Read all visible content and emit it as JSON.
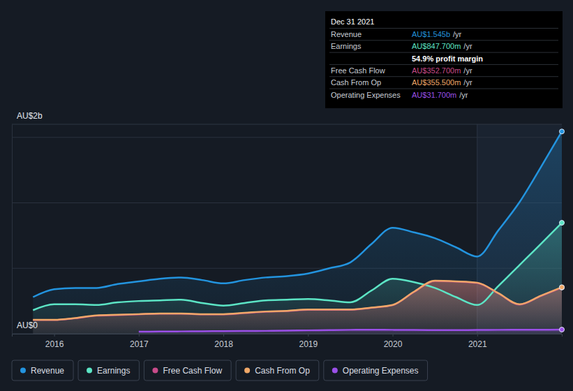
{
  "chart_data": {
    "type": "line",
    "x": [
      2015.75,
      2016,
      2016.25,
      2016.5,
      2016.75,
      2017,
      2017.25,
      2017.5,
      2017.75,
      2018,
      2018.25,
      2018.5,
      2018.75,
      2019,
      2019.25,
      2019.5,
      2019.75,
      2020,
      2020.25,
      2020.5,
      2020.75,
      2021,
      2021.25,
      2021.5,
      2021.75,
      2022
    ],
    "xlim": [
      2015.5,
      2022
    ],
    "xticks": [
      2016,
      2017,
      2018,
      2019,
      2020,
      2021
    ],
    "ylim": [
      0,
      1.6
    ],
    "yticks": [
      0,
      0.5,
      1,
      1.5
    ],
    "grid": true,
    "tick_labels": "x",
    "legend": "bottom",
    "annotations": [
      "AU$2b",
      "AU$0"
    ],
    "series": [
      {
        "name": "Revenue",
        "color": "#2394df",
        "values": [
          0.28,
          0.34,
          0.35,
          0.35,
          0.38,
          0.4,
          0.42,
          0.43,
          0.41,
          0.385,
          0.41,
          0.43,
          0.44,
          0.46,
          0.5,
          0.545,
          0.685,
          0.81,
          0.775,
          0.73,
          0.66,
          0.59,
          0.79,
          1.005,
          1.27,
          1.545
        ]
      },
      {
        "name": "Earnings",
        "color": "#5ce5c5",
        "values": [
          0.18,
          0.225,
          0.225,
          0.22,
          0.24,
          0.25,
          0.255,
          0.26,
          0.235,
          0.215,
          0.235,
          0.255,
          0.26,
          0.265,
          0.255,
          0.24,
          0.33,
          0.42,
          0.395,
          0.35,
          0.28,
          0.22,
          0.365,
          0.525,
          0.685,
          0.8477
        ]
      },
      {
        "name": "Free Cash Flow",
        "color": "#c84b8a",
        "values": [
          0.105,
          0.105,
          0.118,
          0.138,
          0.143,
          0.148,
          0.153,
          0.153,
          0.148,
          0.148,
          0.158,
          0.168,
          0.173,
          0.183,
          0.183,
          0.183,
          0.198,
          0.218,
          0.318,
          0.403,
          0.398,
          0.388,
          0.308,
          0.223,
          0.288,
          0.3527
        ]
      },
      {
        "name": "Cash From Op",
        "color": "#f0a868",
        "values": [
          0.107,
          0.107,
          0.12,
          0.14,
          0.145,
          0.15,
          0.155,
          0.155,
          0.15,
          0.15,
          0.16,
          0.17,
          0.175,
          0.185,
          0.185,
          0.185,
          0.2,
          0.22,
          0.32,
          0.405,
          0.4,
          0.39,
          0.31,
          0.225,
          0.29,
          0.3555
        ]
      },
      {
        "name": "Operating Expenses",
        "color": "#9b50e8",
        "values": [
          null,
          null,
          null,
          null,
          null,
          0.016,
          0.017,
          0.018,
          0.019,
          0.02,
          0.021,
          0.022,
          0.024,
          0.026,
          0.028,
          0.03,
          0.031,
          0.03,
          0.029,
          0.028,
          0.028,
          0.029,
          0.03,
          0.031,
          0.031,
          0.0317
        ]
      }
    ]
  },
  "tooltip": {
    "title": "Dec 31 2021",
    "rows": [
      {
        "label": "Revenue",
        "value": "AU$1.545b",
        "unit": "/yr",
        "color": "#2394df"
      },
      {
        "label": "Earnings",
        "value": "AU$847.700m",
        "unit": "/yr",
        "color": "#5ce5c5"
      },
      {
        "value": "54.9% profit margin"
      },
      {
        "label": "Free Cash Flow",
        "value": "AU$352.700m",
        "unit": "/yr",
        "color": "#c84b8a"
      },
      {
        "label": "Cash From Op",
        "value": "AU$355.500m",
        "unit": "/yr",
        "color": "#f0a868"
      },
      {
        "label": "Operating Expenses",
        "value": "AU$31.700m",
        "unit": "/yr",
        "color": "#9b50e8"
      }
    ]
  }
}
